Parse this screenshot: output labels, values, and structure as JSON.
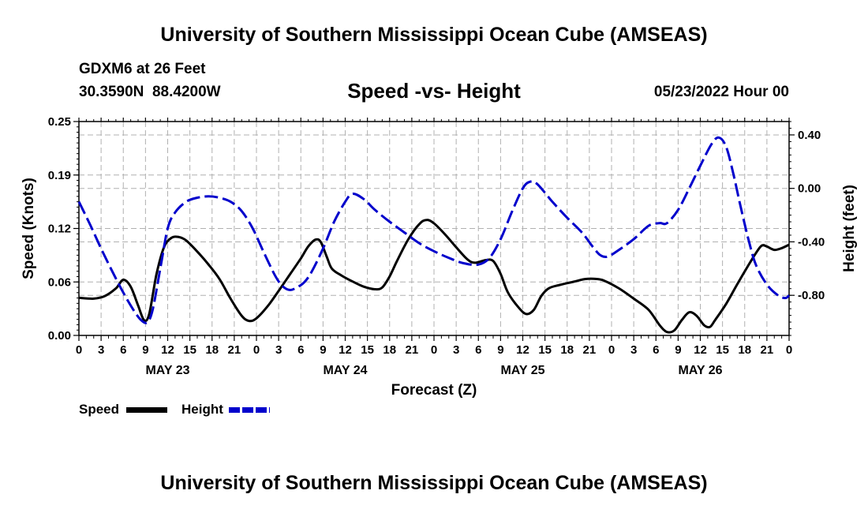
{
  "header": {
    "main_title": "University of Southern Mississippi Ocean Cube (AMSEAS)",
    "station": "GDXM6 at 26 Feet",
    "coords": "30.3590N  88.4200W",
    "subtitle": "Speed -vs- Height",
    "date": "05/23/2022 Hour 00"
  },
  "footer": {
    "title": "University of Southern Mississippi Ocean Cube (AMSEAS)"
  },
  "legend": {
    "speed_label": "Speed",
    "height_label": "Height"
  },
  "chart_data": {
    "type": "line",
    "title": "Speed -vs- Height",
    "xlabel": "Forecast (Z)",
    "ylabel": "Speed (Knots)",
    "y2label": "Height (feet)",
    "x_range": [
      0,
      96
    ],
    "ylim": [
      0,
      0.25
    ],
    "y2lim": [
      -1.1,
      0.5
    ],
    "y_ticks": [
      "0.00",
      "0.06",
      "0.12",
      "0.19",
      "0.25"
    ],
    "y_tick_values": [
      0,
      0.0625,
      0.125,
      0.1875,
      0.25
    ],
    "y2_ticks": [
      "0.40",
      "0.00",
      "-0.40",
      "-0.80"
    ],
    "y2_tick_values": [
      0.4,
      0.0,
      -0.4,
      -0.8
    ],
    "x_tick_labels": [
      "0",
      "3",
      "6",
      "9",
      "12",
      "15",
      "18",
      "21",
      "0",
      "3",
      "6",
      "9",
      "12",
      "15",
      "18",
      "21",
      "0",
      "3",
      "6",
      "9",
      "12",
      "15",
      "18",
      "21",
      "0",
      "3",
      "6",
      "9",
      "12",
      "15",
      "18",
      "21",
      "0"
    ],
    "day_labels": [
      {
        "label": "MAY 23",
        "hour": 12
      },
      {
        "label": "MAY 24",
        "hour": 36
      },
      {
        "label": "MAY 25",
        "hour": 60
      },
      {
        "label": "MAY 26",
        "hour": 84
      }
    ],
    "colors": {
      "speed": "#000000",
      "height": "#0000cc",
      "grid": "#b0b0b0"
    },
    "series": [
      {
        "name": "Speed",
        "axis": "left",
        "style": "solid",
        "points": [
          [
            0,
            0.044
          ],
          [
            2,
            0.043
          ],
          [
            3.5,
            0.046
          ],
          [
            5,
            0.055
          ],
          [
            6,
            0.065
          ],
          [
            7,
            0.057
          ],
          [
            8,
            0.035
          ],
          [
            8.8,
            0.018
          ],
          [
            9.5,
            0.025
          ],
          [
            10.5,
            0.072
          ],
          [
            11.5,
            0.103
          ],
          [
            12.5,
            0.114
          ],
          [
            13.5,
            0.115
          ],
          [
            14.5,
            0.111
          ],
          [
            16,
            0.098
          ],
          [
            17.5,
            0.083
          ],
          [
            19,
            0.066
          ],
          [
            20.5,
            0.043
          ],
          [
            22,
            0.023
          ],
          [
            23,
            0.017
          ],
          [
            24,
            0.02
          ],
          [
            25.5,
            0.034
          ],
          [
            27,
            0.052
          ],
          [
            28.5,
            0.071
          ],
          [
            30,
            0.09
          ],
          [
            31,
            0.104
          ],
          [
            32,
            0.112
          ],
          [
            32.7,
            0.109
          ],
          [
            33.5,
            0.092
          ],
          [
            34.2,
            0.078
          ],
          [
            35.5,
            0.07
          ],
          [
            37,
            0.063
          ],
          [
            38.5,
            0.057
          ],
          [
            40,
            0.054
          ],
          [
            41,
            0.056
          ],
          [
            42,
            0.069
          ],
          [
            43,
            0.087
          ],
          [
            44.5,
            0.112
          ],
          [
            46,
            0.13
          ],
          [
            47,
            0.135
          ],
          [
            48,
            0.131
          ],
          [
            49.5,
            0.118
          ],
          [
            51,
            0.103
          ],
          [
            52.5,
            0.089
          ],
          [
            53.5,
            0.085
          ],
          [
            55,
            0.088
          ],
          [
            56,
            0.087
          ],
          [
            57,
            0.072
          ],
          [
            58,
            0.05
          ],
          [
            59.5,
            0.032
          ],
          [
            60.5,
            0.025
          ],
          [
            61.5,
            0.03
          ],
          [
            62.5,
            0.046
          ],
          [
            63.5,
            0.055
          ],
          [
            65,
            0.059
          ],
          [
            67,
            0.063
          ],
          [
            68.5,
            0.066
          ],
          [
            70,
            0.066
          ],
          [
            71,
            0.064
          ],
          [
            73,
            0.055
          ],
          [
            75,
            0.043
          ],
          [
            77,
            0.03
          ],
          [
            78.5,
            0.012
          ],
          [
            79.5,
            0.004
          ],
          [
            80.5,
            0.006
          ],
          [
            81.5,
            0.018
          ],
          [
            82.5,
            0.027
          ],
          [
            83.5,
            0.023
          ],
          [
            84.5,
            0.012
          ],
          [
            85.3,
            0.01
          ],
          [
            86,
            0.018
          ],
          [
            87.5,
            0.037
          ],
          [
            89,
            0.06
          ],
          [
            90.5,
            0.082
          ],
          [
            91.5,
            0.096
          ],
          [
            92.3,
            0.105
          ],
          [
            93,
            0.104
          ],
          [
            94,
            0.1
          ],
          [
            95,
            0.102
          ],
          [
            96,
            0.106
          ]
        ]
      },
      {
        "name": "Height",
        "axis": "right",
        "style": "dashed",
        "points": [
          [
            0,
            -0.1
          ],
          [
            1.5,
            -0.27
          ],
          [
            3,
            -0.45
          ],
          [
            4.5,
            -0.62
          ],
          [
            6,
            -0.78
          ],
          [
            7.5,
            -0.92
          ],
          [
            8.5,
            -0.99
          ],
          [
            9.3,
            -1.0
          ],
          [
            10,
            -0.9
          ],
          [
            11,
            -0.6
          ],
          [
            12,
            -0.3
          ],
          [
            13,
            -0.18
          ],
          [
            14.5,
            -0.1
          ],
          [
            16,
            -0.07
          ],
          [
            17.5,
            -0.06
          ],
          [
            19,
            -0.07
          ],
          [
            20.5,
            -0.1
          ],
          [
            22,
            -0.17
          ],
          [
            23.5,
            -0.3
          ],
          [
            25,
            -0.48
          ],
          [
            26.5,
            -0.65
          ],
          [
            27.5,
            -0.73
          ],
          [
            28.5,
            -0.76
          ],
          [
            29.5,
            -0.74
          ],
          [
            30.5,
            -0.7
          ],
          [
            31.5,
            -0.62
          ],
          [
            33,
            -0.45
          ],
          [
            34.5,
            -0.25
          ],
          [
            36,
            -0.1
          ],
          [
            37,
            -0.04
          ],
          [
            38.5,
            -0.08
          ],
          [
            40,
            -0.16
          ],
          [
            42,
            -0.25
          ],
          [
            44,
            -0.33
          ],
          [
            46,
            -0.41
          ],
          [
            48,
            -0.47
          ],
          [
            50,
            -0.52
          ],
          [
            52,
            -0.56
          ],
          [
            54,
            -0.57
          ],
          [
            55.5,
            -0.52
          ],
          [
            57,
            -0.38
          ],
          [
            58.5,
            -0.18
          ],
          [
            60,
            0.0
          ],
          [
            61,
            0.05
          ],
          [
            62,
            0.03
          ],
          [
            64,
            -0.1
          ],
          [
            66,
            -0.22
          ],
          [
            68,
            -0.33
          ],
          [
            69.5,
            -0.44
          ],
          [
            70.5,
            -0.5
          ],
          [
            71.5,
            -0.51
          ],
          [
            73,
            -0.46
          ],
          [
            75,
            -0.38
          ],
          [
            77,
            -0.28
          ],
          [
            78.5,
            -0.26
          ],
          [
            79.5,
            -0.26
          ],
          [
            81,
            -0.16
          ],
          [
            82.5,
            0.0
          ],
          [
            84,
            0.17
          ],
          [
            85.5,
            0.33
          ],
          [
            86.5,
            0.38
          ],
          [
            87.5,
            0.31
          ],
          [
            88.5,
            0.1
          ],
          [
            89.5,
            -0.15
          ],
          [
            90.5,
            -0.38
          ],
          [
            91.5,
            -0.57
          ],
          [
            93,
            -0.72
          ],
          [
            94.5,
            -0.8
          ],
          [
            95.5,
            -0.82
          ],
          [
            96,
            -0.8
          ]
        ]
      }
    ]
  }
}
